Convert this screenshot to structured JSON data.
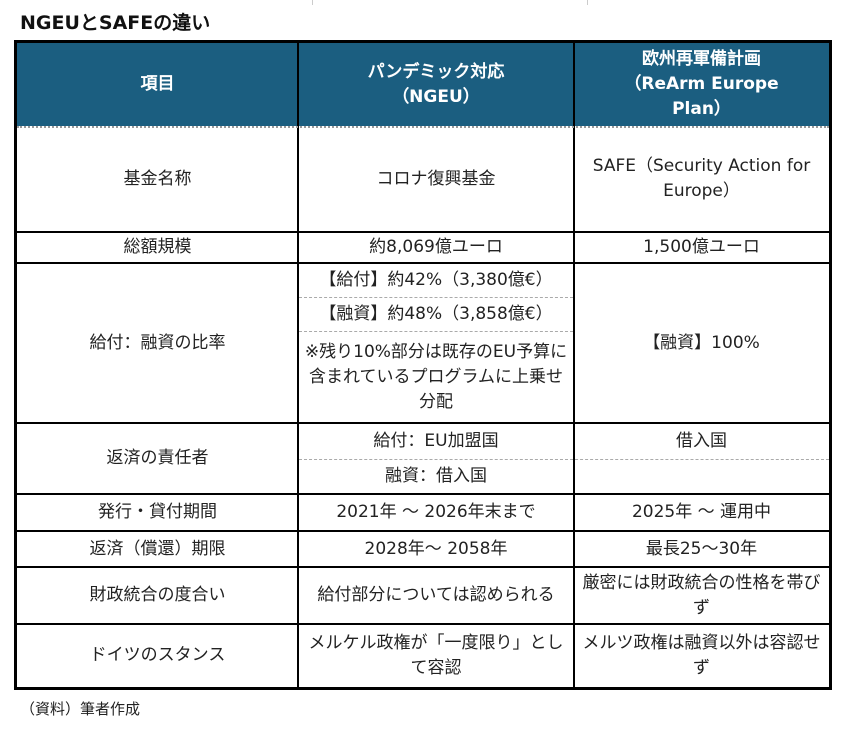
{
  "title": "NGEUとSAFEの違い",
  "header": {
    "item": "項目",
    "ngeu": "パンデミック対応\n（NGEU）",
    "safe": "欧州再軍備計画\n（ReArm Europe Plan）"
  },
  "rows": {
    "fund_name": {
      "label": "基金名称",
      "ngeu": "コロナ復興基金",
      "safe": "SAFE（Security Action for Europe）"
    },
    "total": {
      "label": "総額規模",
      "ngeu": "約8,069億ユーロ",
      "safe": "1,500億ユーロ"
    },
    "ratio": {
      "label": "給付：融資の比率",
      "ngeu_grant": "【給付】約42%（3,380億€）",
      "ngeu_loan": "【融資】約48%（3,858億€）",
      "ngeu_note": "※残り10%部分は既存のEU予算に含まれているプログラムに上乗せ分配",
      "safe": "【融資】100%"
    },
    "repay_resp": {
      "label": "返済の責任者",
      "ngeu_grant": "給付：EU加盟国",
      "ngeu_loan": "融資：借入国",
      "safe": "借入国"
    },
    "period": {
      "label": "発行・貸付期間",
      "ngeu": "2021年 ～ 2026年末まで",
      "safe": "2025年 ～ 運用中"
    },
    "deadline": {
      "label": "返済（償還）期限",
      "ngeu": "2028年～ 2058年",
      "safe": "最長25～30年"
    },
    "fiscal": {
      "label": "財政統合の度合い",
      "ngeu": "給付部分については認められる",
      "safe": "厳密には財政統合の性格を帯びず"
    },
    "germany": {
      "label": "ドイツのスタンス",
      "ngeu": "メルケル政権が「一度限り」として容認",
      "safe": "メルツ政権は融資以外は容認せず"
    }
  },
  "source": "（資料）筆者作成",
  "colors": {
    "header_bg": "#1b5e80"
  }
}
